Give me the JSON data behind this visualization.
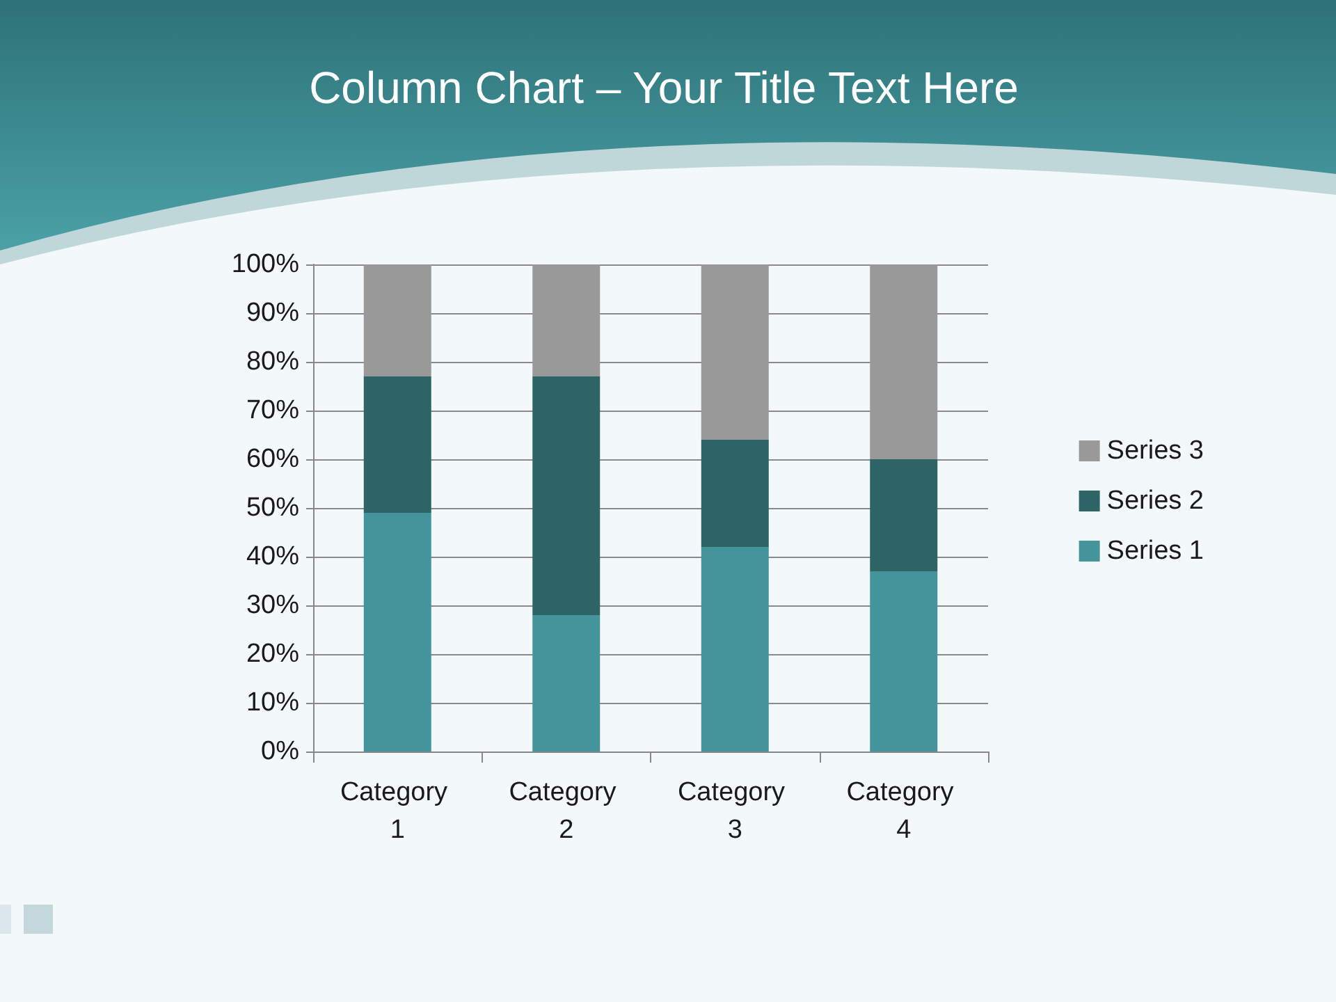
{
  "chart_data": {
    "type": "bar",
    "title": "Column Chart – Your Title Text Here",
    "categories": [
      "Category 1",
      "Category 2",
      "Category 3",
      "Category 4"
    ],
    "series": [
      {
        "name": "Series 1",
        "color": "#44959b",
        "values": [
          49,
          28,
          42,
          37
        ]
      },
      {
        "name": "Series 2",
        "color": "#2f6466",
        "values": [
          28,
          49,
          22,
          23
        ]
      },
      {
        "name": "Series 3",
        "color": "#999999",
        "values": [
          23,
          23,
          36,
          40
        ]
      }
    ],
    "stacked": true,
    "ylim": [
      0,
      100
    ],
    "yticks": [
      {
        "value": 0,
        "label": "0%"
      },
      {
        "value": 10,
        "label": "10%"
      },
      {
        "value": 20,
        "label": "20%"
      },
      {
        "value": 30,
        "label": "30%"
      },
      {
        "value": 40,
        "label": "40%"
      },
      {
        "value": 50,
        "label": "50%"
      },
      {
        "value": 60,
        "label": "60%"
      },
      {
        "value": 70,
        "label": "70%"
      },
      {
        "value": 80,
        "label": "80%"
      },
      {
        "value": 90,
        "label": "90%"
      },
      {
        "value": 100,
        "label": "100%"
      }
    ],
    "grid": "y",
    "legend": "right"
  }
}
